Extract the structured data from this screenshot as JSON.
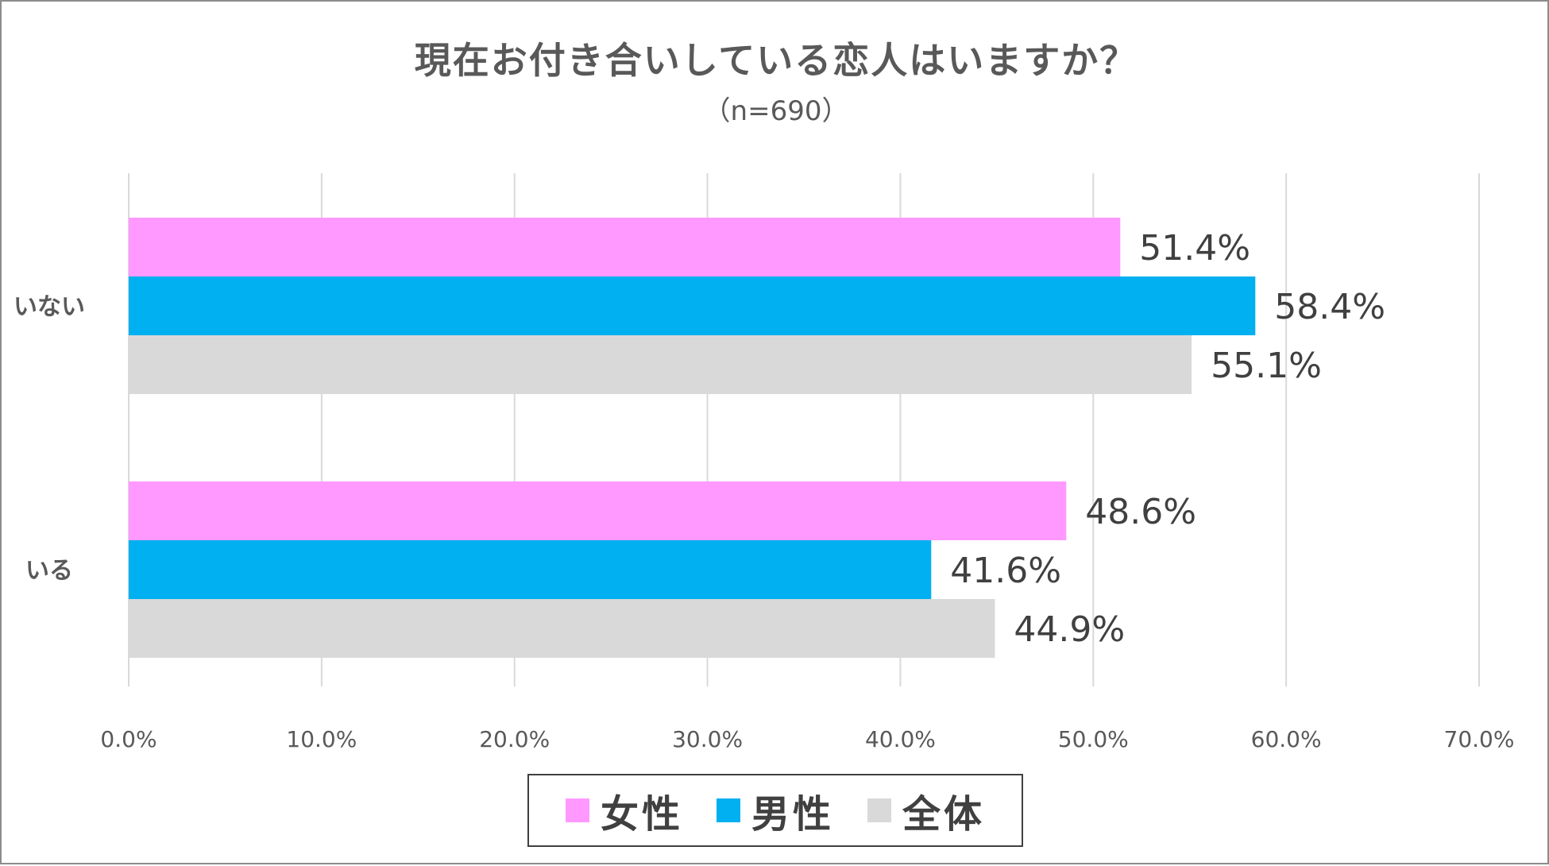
{
  "chart_data": {
    "type": "bar",
    "orientation": "horizontal",
    "title": "現在お付き合いしている恋人はいますか？",
    "subtitle": "（n=690）",
    "categories": [
      "いない",
      "いる"
    ],
    "series": [
      {
        "name": "女性",
        "color": "#FF99FF",
        "values": [
          51.4,
          48.6
        ],
        "labels": [
          "51.4%",
          "48.6%"
        ]
      },
      {
        "name": "男性",
        "color": "#00B0F0",
        "values": [
          58.4,
          41.6
        ],
        "labels": [
          "58.4%",
          "41.6%"
        ]
      },
      {
        "name": "全体",
        "color": "#D9D9D9",
        "values": [
          55.1,
          44.9
        ],
        "labels": [
          "55.1%",
          "44.9%"
        ]
      }
    ],
    "xlim": [
      0,
      70
    ],
    "x_ticks": [
      0,
      10,
      20,
      30,
      40,
      50,
      60,
      70
    ],
    "x_tick_labels": [
      "0.0%",
      "10.0%",
      "20.0%",
      "30.0%",
      "40.0%",
      "50.0%",
      "60.0%",
      "70.0%"
    ],
    "grid": "vertical",
    "legend_position": "bottom"
  }
}
